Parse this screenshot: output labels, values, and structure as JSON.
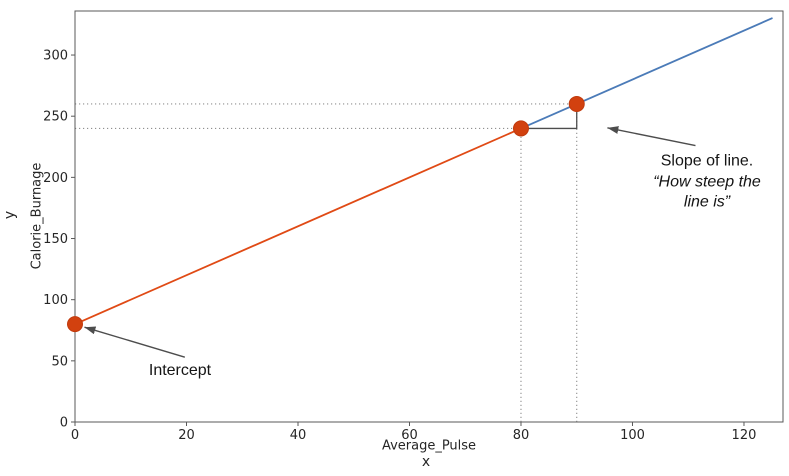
{
  "chart_data": {
    "type": "line",
    "title": "",
    "xlabel": "Average_Pulse",
    "ylabel": "Calorie_Burnage",
    "outer_xlabel": "x",
    "outer_ylabel": "y",
    "xlim": [
      0,
      127
    ],
    "ylim": [
      0,
      336
    ],
    "xticks": [
      0,
      20,
      40,
      60,
      80,
      100,
      120
    ],
    "yticks": [
      0,
      50,
      100,
      150,
      200,
      250,
      300
    ],
    "grid": false,
    "legend": false,
    "series": [
      {
        "name": "blue-segment",
        "color": "#4b7bb8",
        "x": [
          80,
          125
        ],
        "y": [
          240,
          330
        ]
      },
      {
        "name": "red-segment",
        "color": "#e04a15",
        "x": [
          0,
          80
        ],
        "y": [
          80,
          240
        ]
      }
    ],
    "points": [
      {
        "x": 0,
        "y": 80,
        "label": "intercept-point"
      },
      {
        "x": 80,
        "y": 240,
        "label": "slope-point-1"
      },
      {
        "x": 90,
        "y": 260,
        "label": "slope-point-2"
      }
    ],
    "guide_lines": {
      "horizontal": [
        {
          "y": 240,
          "x0": 0,
          "x1": 80
        },
        {
          "y": 260,
          "x0": 0,
          "x1": 90
        }
      ],
      "vertical": [
        {
          "x": 80,
          "y0": 0,
          "y1": 240
        },
        {
          "x": 90,
          "y0": 0,
          "y1": 260
        }
      ]
    },
    "slope_bracket": {
      "points": [
        [
          80,
          240
        ],
        [
          90,
          240
        ],
        [
          90,
          260
        ]
      ]
    },
    "arrows": [
      {
        "name": "intercept-arrow",
        "from": [
          19.7,
          53
        ],
        "to": [
          1.7,
          77.5
        ]
      },
      {
        "name": "slope-arrow",
        "from": [
          111.3,
          226
        ],
        "to": [
          95.5,
          240.5
        ]
      }
    ],
    "colors": {
      "red_line": "#e04a15",
      "blue_line": "#4b7bb8",
      "point_fill": "#d2410f",
      "point_edge": "#c03a0d",
      "guide": "#909090",
      "arrow": "#4d4d4d",
      "spine": "#595959",
      "tick_text": "#262626"
    }
  },
  "annotations": {
    "intercept_label": "Intercept",
    "slope_label_line1": "Slope of line.",
    "slope_label_line2": "“How steep the",
    "slope_label_line3": "line is”"
  }
}
